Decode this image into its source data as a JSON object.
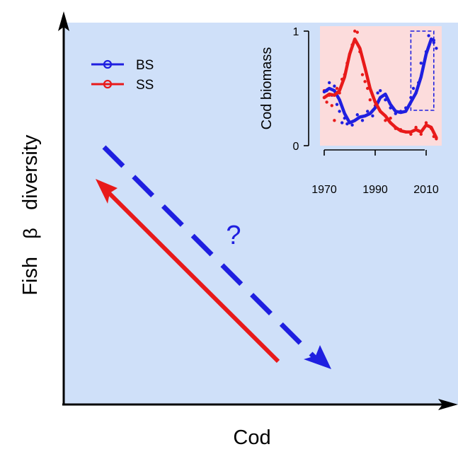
{
  "main": {
    "xlabel": "Cod",
    "ylabel_prefix": "Fish",
    "ylabel_symbol": "β",
    "ylabel_suffix": "diversity",
    "background_color": "#cfe0f9",
    "question_mark": "?"
  },
  "legend": {
    "entries": [
      {
        "name": "BS",
        "color": "#1f1fe0"
      },
      {
        "name": "SS",
        "color": "#e81a1a"
      }
    ]
  },
  "chart_data": [
    {
      "type": "line",
      "title": "",
      "xlabel": "Cod",
      "ylabel": "Fish β diversity",
      "series": [
        {
          "name": "SS",
          "style": "solid arrow",
          "trend": "decreasing",
          "color": "#e81a1a"
        },
        {
          "name": "BS",
          "style": "dashed arrow",
          "trend": "decreasing",
          "color": "#1f1fe0",
          "annotation": "?"
        }
      ]
    },
    {
      "type": "line",
      "title": "",
      "xlabel": "",
      "ylabel": "Cod biomass",
      "xlim": [
        1970,
        2015
      ],
      "ylim": [
        0,
        1
      ],
      "xticks": [
        "1970",
        "1990",
        "2010"
      ],
      "yticks": [
        "0",
        "1"
      ],
      "background_color": "#fcdcdc",
      "highlight_box_x": [
        2004,
        2013
      ],
      "series": [
        {
          "name": "BS",
          "color": "#1f1fe0",
          "x": [
            1970,
            1972,
            1974,
            1976,
            1978,
            1980,
            1982,
            1984,
            1986,
            1988,
            1990,
            1992,
            1994,
            1996,
            1998,
            2000,
            2002,
            2004,
            2006,
            2008,
            2010,
            2012,
            2013
          ],
          "y": [
            0.47,
            0.5,
            0.48,
            0.4,
            0.28,
            0.2,
            0.22,
            0.25,
            0.26,
            0.28,
            0.33,
            0.42,
            0.45,
            0.36,
            0.3,
            0.29,
            0.3,
            0.38,
            0.46,
            0.6,
            0.8,
            0.93,
            0.92
          ],
          "points": [
            [
              1970,
              0.42
            ],
            [
              1971,
              0.48
            ],
            [
              1972,
              0.55
            ],
            [
              1973,
              0.44
            ],
            [
              1974,
              0.52
            ],
            [
              1975,
              0.36
            ],
            [
              1976,
              0.3
            ],
            [
              1977,
              0.2
            ],
            [
              1978,
              0.24
            ],
            [
              1979,
              0.19
            ],
            [
              1981,
              0.18
            ],
            [
              1983,
              0.27
            ],
            [
              1985,
              0.22
            ],
            [
              1987,
              0.3
            ],
            [
              1989,
              0.26
            ],
            [
              1991,
              0.46
            ],
            [
              1992,
              0.48
            ],
            [
              1994,
              0.4
            ],
            [
              1996,
              0.33
            ],
            [
              1998,
              0.28
            ],
            [
              2000,
              0.3
            ],
            [
              2002,
              0.33
            ],
            [
              2004,
              0.42
            ],
            [
              2005,
              0.5
            ],
            [
              2007,
              0.55
            ],
            [
              2008,
              0.72
            ],
            [
              2010,
              0.82
            ],
            [
              2011,
              0.96
            ],
            [
              2012,
              0.93
            ],
            [
              2013,
              0.9
            ],
            [
              2014,
              0.85
            ]
          ]
        },
        {
          "name": "SS",
          "color": "#e81a1a",
          "x": [
            1970,
            1972,
            1974,
            1976,
            1978,
            1980,
            1982,
            1984,
            1986,
            1988,
            1990,
            1992,
            1994,
            1996,
            1998,
            2000,
            2002,
            2004,
            2006,
            2008,
            2010,
            2012,
            2014
          ],
          "y": [
            0.42,
            0.45,
            0.44,
            0.48,
            0.6,
            0.8,
            0.93,
            0.85,
            0.68,
            0.5,
            0.38,
            0.3,
            0.26,
            0.2,
            0.16,
            0.13,
            0.12,
            0.12,
            0.14,
            0.12,
            0.18,
            0.16,
            0.07
          ],
          "points": [
            [
              1970,
              0.48
            ],
            [
              1971,
              0.38
            ],
            [
              1972,
              0.44
            ],
            [
              1973,
              0.35
            ],
            [
              1974,
              0.22
            ],
            [
              1975,
              0.5
            ],
            [
              1976,
              0.46
            ],
            [
              1977,
              0.58
            ],
            [
              1978,
              0.62
            ],
            [
              1979,
              0.72
            ],
            [
              1980,
              0.8
            ],
            [
              1981,
              0.88
            ],
            [
              1982,
              1.0
            ],
            [
              1983,
              0.99
            ],
            [
              1984,
              0.82
            ],
            [
              1985,
              0.62
            ],
            [
              1986,
              0.56
            ],
            [
              1987,
              0.5
            ],
            [
              1988,
              0.4
            ],
            [
              1990,
              0.35
            ],
            [
              1992,
              0.3
            ],
            [
              1994,
              0.22
            ],
            [
              1996,
              0.24
            ],
            [
              1998,
              0.15
            ],
            [
              2000,
              0.14
            ],
            [
              2002,
              0.12
            ],
            [
              2004,
              0.1
            ],
            [
              2006,
              0.16
            ],
            [
              2008,
              0.1
            ],
            [
              2010,
              0.2
            ],
            [
              2012,
              0.15
            ],
            [
              2013,
              0.08
            ],
            [
              2014,
              0.06
            ]
          ]
        }
      ]
    }
  ]
}
